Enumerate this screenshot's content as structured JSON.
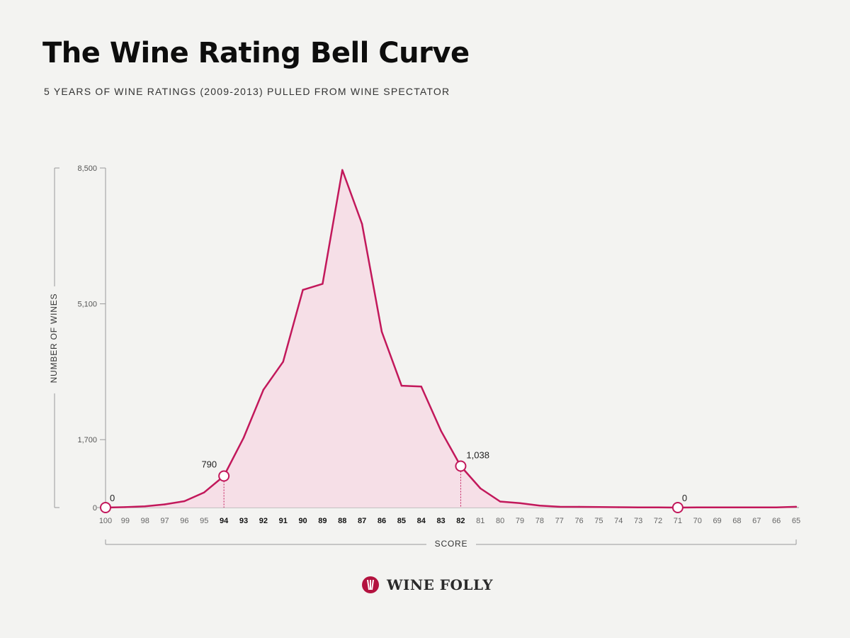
{
  "header": {
    "title": "The Wine Rating Bell Curve",
    "subtitle": "5 YEARS OF WINE RATINGS (2009-2013) PULLED FROM WINE SPECTATOR"
  },
  "footer": {
    "brand": "WINE FOLLY"
  },
  "colors": {
    "line": "#c2185b",
    "fill": "#f6dde6",
    "axis": "#9a9a9a",
    "background": "#f3f3f1"
  },
  "chart_data": {
    "type": "area",
    "xlabel": "SCORE",
    "ylabel": "NUMBER OF WINES",
    "ylim": [
      0,
      8500
    ],
    "yticks": [
      {
        "value": 0,
        "label": "0"
      },
      {
        "value": 1700,
        "label": "1,700"
      },
      {
        "value": 5100,
        "label": "5,100"
      },
      {
        "value": 8500,
        "label": "8,500"
      }
    ],
    "x_reversed": true,
    "x": [
      100,
      99,
      98,
      97,
      96,
      95,
      94,
      93,
      92,
      91,
      90,
      89,
      88,
      87,
      86,
      85,
      84,
      83,
      82,
      81,
      80,
      79,
      78,
      77,
      76,
      75,
      74,
      73,
      72,
      71,
      70,
      69,
      68,
      67,
      66,
      65
    ],
    "bold_x": [
      94,
      93,
      92,
      91,
      90,
      89,
      88,
      87,
      86,
      85,
      84,
      83,
      82
    ],
    "values": [
      0,
      10,
      30,
      80,
      160,
      380,
      790,
      1750,
      2950,
      3650,
      5450,
      5600,
      8450,
      7100,
      4400,
      3050,
      3030,
      1920,
      1038,
      480,
      150,
      110,
      50,
      20,
      18,
      15,
      8,
      6,
      5,
      0,
      3,
      3,
      3,
      3,
      3,
      20
    ],
    "annotations": [
      {
        "x": 100,
        "label": "0",
        "marker": true
      },
      {
        "x": 94,
        "label": "790",
        "marker": true,
        "dashed": true
      },
      {
        "x": 82,
        "label": "1,038",
        "marker": true,
        "dashed": true
      },
      {
        "x": 71,
        "label": "0",
        "marker": true
      }
    ],
    "grid": false
  }
}
